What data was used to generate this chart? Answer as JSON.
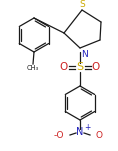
{
  "bg_color": "#ffffff",
  "line_color": "#1a1a1a",
  "atom_colors": {
    "S": "#ccaa00",
    "N": "#2222bb",
    "O": "#cc2222",
    "N_nitro": "#2222bb",
    "O_nitro": "#cc2222"
  },
  "figsize": [
    1.18,
    1.51
  ],
  "dpi": 100
}
